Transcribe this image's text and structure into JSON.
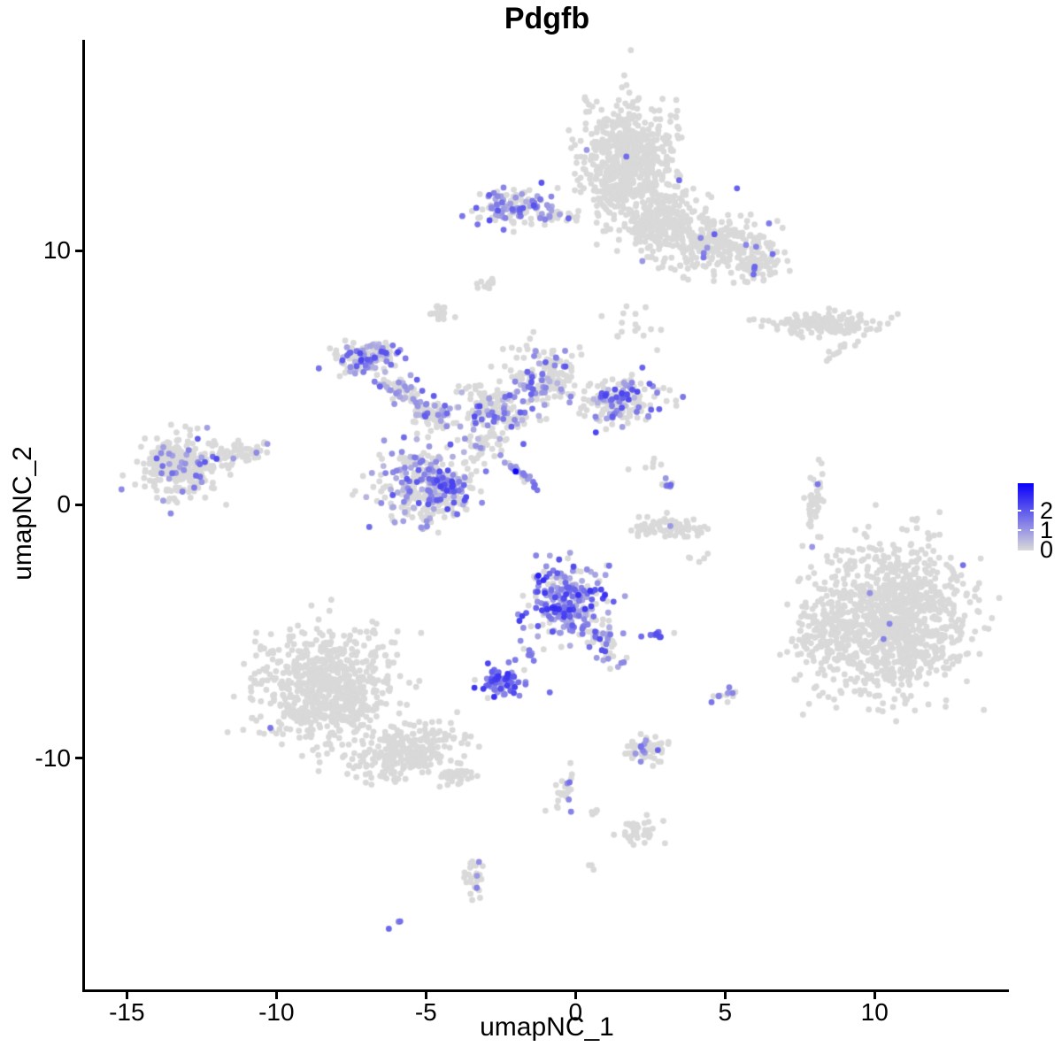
{
  "title": "Pdgfb",
  "axes": {
    "x_label": "umapNC_1",
    "y_label": "umapNC_2"
  },
  "legend": {
    "tick_values": [
      2,
      1,
      0
    ],
    "tick_labels": [
      "2",
      "1",
      "0"
    ],
    "max_value": 3.41,
    "low_color": "#d9d9d9",
    "high_color": "#0a00fa"
  },
  "chart_data": {
    "type": "scatter",
    "title": "Pdgfb",
    "xlabel": "umapNC_1",
    "ylabel": "umapNC_2",
    "x_ticks": [
      -15,
      -10,
      -5,
      0,
      5,
      10
    ],
    "y_ticks": [
      10,
      0,
      -10
    ],
    "xlim": [
      -16.4,
      14.49
    ],
    "ylim": [
      -19.1,
      18.3
    ],
    "grid": false,
    "legend_position": "right",
    "point_color_low": "#d9d9d9",
    "point_color_high": "#0a00fa",
    "point_radius_px": 3.4,
    "seed": 42,
    "clusters": [
      {
        "name": "top-big-core",
        "x": 1.8,
        "y": 13.4,
        "rx": 1.6,
        "ry": 2.3,
        "rot": 0,
        "n": 650,
        "frac": 0.004,
        "expr": [
          0.3,
          0.55
        ]
      },
      {
        "name": "top-big-lower",
        "x": 2.9,
        "y": 11.1,
        "rx": 1.4,
        "ry": 1.1,
        "rot": 0,
        "n": 260,
        "frac": 0.01,
        "expr": [
          0.3,
          0.55
        ]
      },
      {
        "name": "top-big-arm",
        "x": 4.6,
        "y": 10.2,
        "rx": 1.7,
        "ry": 0.85,
        "rot": -22,
        "n": 230,
        "frac": 0.02,
        "expr": [
          0.3,
          0.6
        ]
      },
      {
        "name": "top-big-arm-tip",
        "x": 6.0,
        "y": 9.5,
        "rx": 0.8,
        "ry": 0.6,
        "rot": -30,
        "n": 90,
        "frac": 0.08,
        "expr": [
          0.35,
          0.65
        ]
      },
      {
        "name": "top-left-small",
        "x": -2.0,
        "y": 11.7,
        "rx": 1.2,
        "ry": 0.75,
        "rot": 0,
        "n": 135,
        "frac": 0.4,
        "expr": [
          0.2,
          0.65
        ]
      },
      {
        "name": "top-left-chain",
        "x": -0.5,
        "y": 11.4,
        "rx": 0.85,
        "ry": 0.18,
        "rot": -5,
        "n": 22,
        "frac": 0.35,
        "expr": [
          0.25,
          0.55
        ]
      },
      {
        "name": "right-band",
        "x": 8.2,
        "y": 7.1,
        "rx": 1.8,
        "ry": 0.42,
        "rot": -3,
        "n": 150,
        "frac": 0,
        "expr": [
          0.3,
          0.5
        ]
      },
      {
        "name": "right-band-dash",
        "x": 8.8,
        "y": 6.1,
        "rx": 0.5,
        "ry": 0.16,
        "rot": -35,
        "n": 12,
        "frac": 0,
        "expr": [
          0.3,
          0.5
        ]
      },
      {
        "name": "tiny-blob-upper",
        "x": -2.9,
        "y": 8.8,
        "rx": 0.35,
        "ry": 0.25,
        "rot": -30,
        "n": 15,
        "frac": 0,
        "expr": [
          0.3,
          0.5
        ]
      },
      {
        "name": "tiny-blob-left",
        "x": -4.6,
        "y": 7.5,
        "rx": 0.3,
        "ry": 0.35,
        "rot": 0,
        "n": 20,
        "frac": 0,
        "expr": [
          0.3,
          0.5
        ]
      },
      {
        "name": "center-left-top",
        "x": -7.0,
        "y": 5.8,
        "rx": 1.05,
        "ry": 0.65,
        "rot": -10,
        "n": 130,
        "frac": 0.45,
        "expr": [
          0.15,
          0.7
        ]
      },
      {
        "name": "center-left-arm",
        "x": -5.9,
        "y": 4.5,
        "rx": 0.9,
        "ry": 0.45,
        "rot": 35,
        "n": 70,
        "frac": 0.35,
        "expr": [
          0.15,
          0.6
        ]
      },
      {
        "name": "center-connector",
        "x": -4.7,
        "y": 3.5,
        "rx": 0.8,
        "ry": 0.55,
        "rot": 20,
        "n": 80,
        "frac": 0.3,
        "expr": [
          0.15,
          0.6
        ]
      },
      {
        "name": "center-lower-blob",
        "x": -5.1,
        "y": 0.7,
        "rx": 1.5,
        "ry": 1.55,
        "rot": 0,
        "n": 270,
        "frac": 0.38,
        "expr": [
          0.15,
          0.6
        ]
      },
      {
        "name": "center-lower-dense",
        "x": -4.3,
        "y": 0.8,
        "rx": 0.8,
        "ry": 0.65,
        "rot": 0,
        "n": 90,
        "frac": 0.7,
        "expr": [
          0.2,
          0.7
        ]
      },
      {
        "name": "center-mid-arm",
        "x": -2.7,
        "y": 3.7,
        "rx": 1.35,
        "ry": 0.8,
        "rot": 18,
        "n": 150,
        "frac": 0.32,
        "expr": [
          0.15,
          0.65
        ]
      },
      {
        "name": "center-upper-mid",
        "x": -0.9,
        "y": 4.9,
        "rx": 1.0,
        "ry": 1.0,
        "rot": 0,
        "n": 150,
        "frac": 0.33,
        "expr": [
          0.15,
          0.65
        ]
      },
      {
        "name": "center-right-wing",
        "x": 1.5,
        "y": 4.1,
        "rx": 1.25,
        "ry": 0.95,
        "rot": -10,
        "n": 170,
        "frac": 0.35,
        "expr": [
          0.15,
          0.7
        ]
      },
      {
        "name": "center-streak",
        "x": -1.8,
        "y": 1.2,
        "rx": 0.85,
        "ry": 0.14,
        "rot": 42,
        "n": 24,
        "frac": 0.8,
        "expr": [
          0.25,
          0.5
        ]
      },
      {
        "name": "center-sparse",
        "x": -3.1,
        "y": 2.3,
        "rx": 1.0,
        "ry": 0.8,
        "rot": 0,
        "n": 45,
        "frac": 0.25,
        "expr": [
          0.15,
          0.55
        ]
      },
      {
        "name": "left-main",
        "x": -13.2,
        "y": 1.5,
        "rx": 1.35,
        "ry": 1.15,
        "rot": -8,
        "n": 290,
        "frac": 0.1,
        "expr": [
          0.25,
          0.6
        ]
      },
      {
        "name": "left-tail",
        "x": -11.3,
        "y": 2.0,
        "rx": 0.9,
        "ry": 0.35,
        "rot": -12,
        "n": 55,
        "frac": 0.08,
        "expr": [
          0.25,
          0.55
        ]
      },
      {
        "name": "midright-blob",
        "x": 3.1,
        "y": 0.8,
        "rx": 0.3,
        "ry": 0.25,
        "rot": 0,
        "n": 10,
        "frac": 0.45,
        "expr": [
          0.3,
          0.6
        ]
      },
      {
        "name": "midright-arc",
        "x": 3.2,
        "y": -0.9,
        "rx": 1.35,
        "ry": 0.4,
        "rot": 0,
        "n": 75,
        "frac": 0.01,
        "expr": [
          0.3,
          0.5
        ]
      },
      {
        "name": "midright-sparse",
        "x": 2.4,
        "y": 1.7,
        "rx": 0.5,
        "ry": 0.5,
        "rot": 0,
        "n": 6,
        "frac": 0,
        "expr": [
          0.3,
          0.5
        ]
      },
      {
        "name": "right-sliver",
        "x": 8.0,
        "y": 0.2,
        "rx": 0.25,
        "ry": 1.3,
        "rot": 8,
        "n": 34,
        "frac": 0.03,
        "expr": [
          0.3,
          0.55
        ]
      },
      {
        "name": "purple-main",
        "x": -0.3,
        "y": -3.8,
        "rx": 1.4,
        "ry": 1.45,
        "rot": 0,
        "n": 240,
        "frac": 0.72,
        "expr": [
          0.2,
          0.8
        ]
      },
      {
        "name": "purple-main-tail",
        "x": 0.8,
        "y": -5.3,
        "rx": 0.5,
        "ry": 1.0,
        "rot": -28,
        "n": 65,
        "frac": 0.45,
        "expr": [
          0.2,
          0.7
        ]
      },
      {
        "name": "purple-dash",
        "x": 2.8,
        "y": -5.1,
        "rx": 0.4,
        "ry": 0.15,
        "rot": -12,
        "n": 10,
        "frac": 0.9,
        "expr": [
          0.45,
          0.75
        ]
      },
      {
        "name": "purple-blob-small",
        "x": -2.4,
        "y": -7.0,
        "rx": 0.75,
        "ry": 0.6,
        "rot": 0,
        "n": 75,
        "frac": 0.85,
        "expr": [
          0.3,
          0.8
        ]
      },
      {
        "name": "purple-chain",
        "x": -1.5,
        "y": -5.9,
        "rx": 0.6,
        "ry": 0.15,
        "rot": 55,
        "n": 10,
        "frac": 0.85,
        "expr": [
          0.3,
          0.6
        ]
      },
      {
        "name": "bottomleft-main",
        "x": -8.3,
        "y": -7.2,
        "rx": 2.2,
        "ry": 2.25,
        "rot": 0,
        "n": 720,
        "frac": 0.002,
        "expr": [
          0.3,
          0.5
        ]
      },
      {
        "name": "bottomleft-tail",
        "x": -5.6,
        "y": -9.8,
        "rx": 1.8,
        "ry": 0.95,
        "rot": -18,
        "n": 260,
        "frac": 0,
        "expr": [
          0.3,
          0.5
        ]
      },
      {
        "name": "bottomleft-tip",
        "x": -4.0,
        "y": -10.7,
        "rx": 0.5,
        "ry": 0.35,
        "rot": -20,
        "n": 40,
        "frac": 0,
        "expr": [
          0.3,
          0.5
        ]
      },
      {
        "name": "bottomright-main",
        "x": 10.7,
        "y": -4.5,
        "rx": 2.3,
        "ry": 2.9,
        "rot": 0,
        "n": 950,
        "frac": 0.002,
        "expr": [
          0.3,
          0.5
        ]
      },
      {
        "name": "bottomright-left-sparse",
        "x": 8.4,
        "y": -5.1,
        "rx": 1.2,
        "ry": 2.3,
        "rot": 0,
        "n": 170,
        "frac": 0,
        "expr": [
          0.3,
          0.5
        ]
      },
      {
        "name": "bottomright-top-sparse",
        "x": 9.0,
        "y": -2.0,
        "rx": 0.9,
        "ry": 0.5,
        "rot": 0,
        "n": 15,
        "frac": 0,
        "expr": [
          0.3,
          0.5
        ]
      },
      {
        "name": "small-pair-cluster",
        "x": 4.9,
        "y": -7.5,
        "rx": 0.4,
        "ry": 0.35,
        "rot": 0,
        "n": 12,
        "frac": 0.25,
        "expr": [
          0.3,
          0.55
        ]
      },
      {
        "name": "bottom-center-a",
        "x": 2.4,
        "y": -9.7,
        "rx": 0.85,
        "ry": 0.5,
        "rot": 0,
        "n": 55,
        "frac": 0.13,
        "expr": [
          0.3,
          0.55
        ]
      },
      {
        "name": "bottom-chain",
        "x": -0.4,
        "y": -11.4,
        "rx": 0.3,
        "ry": 1.1,
        "rot": 18,
        "n": 22,
        "frac": 0.05,
        "expr": [
          0.3,
          0.5
        ]
      },
      {
        "name": "bottom-dots",
        "x": 0.7,
        "y": -12.1,
        "rx": 0.35,
        "ry": 0.12,
        "rot": 0,
        "n": 6,
        "frac": 0,
        "expr": [
          0.3,
          0.5
        ]
      },
      {
        "name": "bottom-blob",
        "x": 2.1,
        "y": -12.9,
        "rx": 0.6,
        "ry": 0.45,
        "rot": 0,
        "n": 35,
        "frac": 0,
        "expr": [
          0.3,
          0.5
        ]
      },
      {
        "name": "bottom-pair",
        "x": 0.5,
        "y": -14.3,
        "rx": 0.15,
        "ry": 0.12,
        "rot": 0,
        "n": 3,
        "frac": 0.4,
        "expr": [
          0.35,
          0.55
        ]
      },
      {
        "name": "bottom-vertical",
        "x": -3.4,
        "y": -14.7,
        "rx": 0.3,
        "ry": 0.95,
        "rot": 0,
        "n": 30,
        "frac": 0.04,
        "expr": [
          0.3,
          0.5
        ]
      },
      {
        "name": "bottom-dash",
        "x": -6.1,
        "y": -16.5,
        "rx": 0.28,
        "ry": 0.12,
        "rot": -25,
        "n": 4,
        "frac": 0.9,
        "expr": [
          0.35,
          0.55
        ]
      },
      {
        "name": "gap-sparse-upper",
        "x": -1.5,
        "y": 6.0,
        "rx": 1.7,
        "ry": 1.1,
        "rot": 0,
        "n": 22,
        "frac": 0.1,
        "expr": [
          0.2,
          0.5
        ]
      },
      {
        "name": "gap-sparse-topright",
        "x": 2.0,
        "y": 7.0,
        "rx": 0.9,
        "ry": 1.0,
        "rot": 0,
        "n": 16,
        "frac": 0.05,
        "expr": [
          0.2,
          0.5
        ]
      },
      {
        "name": "gap-sparse-right",
        "x": 4.0,
        "y": -2.2,
        "rx": 0.4,
        "ry": 0.4,
        "rot": 0,
        "n": 5,
        "frac": 0,
        "expr": [
          0.3,
          0.5
        ]
      }
    ],
    "highlights": [
      {
        "x": -2.0,
        "y": 1.3,
        "t": 0.97
      },
      {
        "x": -1.24,
        "y": -2.8,
        "t": 0.85
      },
      {
        "x": 1.7,
        "y": 13.7,
        "t": 0.5
      },
      {
        "x": 5.4,
        "y": 12.45,
        "t": 0.55
      },
      {
        "x": -10.2,
        "y": -8.8,
        "t": 0.45
      },
      {
        "x": 10.5,
        "y": -4.7,
        "t": 0.4
      },
      {
        "x": 10.3,
        "y": -5.3,
        "t": 0.4
      },
      {
        "x": 8.1,
        "y": 0.8,
        "t": 0.45
      },
      {
        "x": 2.2,
        "y": -5.2,
        "t": 0.5
      },
      {
        "x": -0.86,
        "y": -7.4,
        "t": 0.5
      },
      {
        "x": -0.15,
        "y": -12.1,
        "t": 0.4
      },
      {
        "x": -3.3,
        "y": -15.1,
        "t": 0.4
      },
      {
        "x": -12.0,
        "y": 1.8,
        "t": 0.65
      }
    ]
  }
}
